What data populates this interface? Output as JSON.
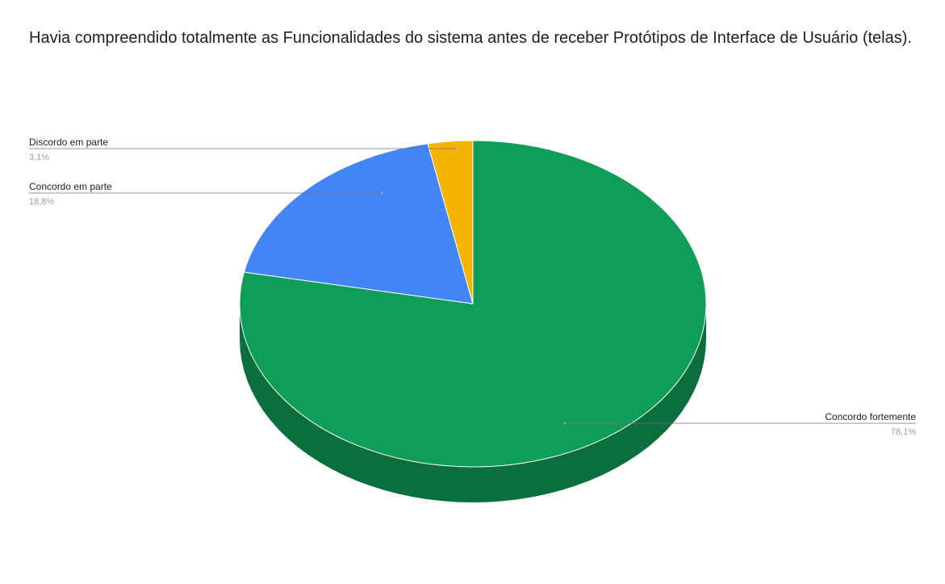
{
  "chart_data": {
    "type": "pie",
    "title": "Havia compreendido totalmente as Funcionalidades do sistema antes de receber Protótipos de Interface de Usuário (telas).",
    "three_d": true,
    "slices": [
      {
        "label": "Concordo fortemente",
        "value": 78.1,
        "value_label": "78,1%",
        "color": "#0f9d58",
        "side_color": "#0b6e3e"
      },
      {
        "label": "Concordo em parte",
        "value": 18.8,
        "value_label": "18,8%",
        "color": "#4285f4",
        "side_color": "#2e5daa"
      },
      {
        "label": "Discordo em parte",
        "value": 3.1,
        "value_label": "3,1%",
        "color": "#f4b400",
        "side_color": "#aa7e00"
      }
    ],
    "legend": "none",
    "label_style": "callout"
  }
}
